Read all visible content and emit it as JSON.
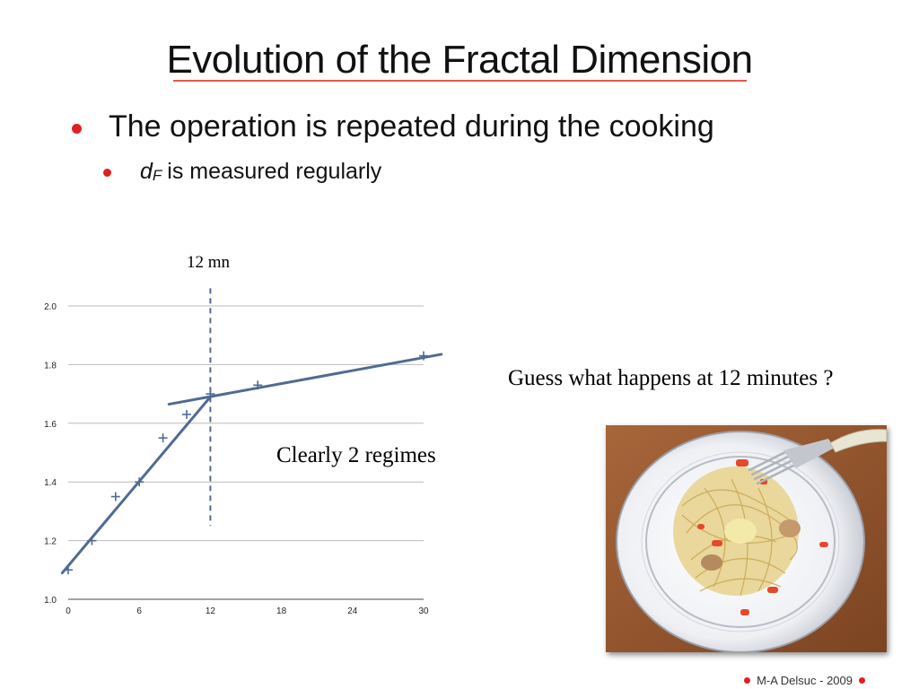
{
  "slide": {
    "title": "Evolution of the Fractal Dimension",
    "bullet_main": "The operation is repeated during the cooking",
    "bullet_sub_var": "d",
    "bullet_sub_subscript": "F",
    "bullet_sub_text": "is measured regularly",
    "annotation_12mn": "12 mn",
    "annotation_regimes": "Clearly 2 regimes",
    "question": "Guess what happens at 12 minutes ?",
    "footer": "M-A Delsuc - 2009"
  },
  "colors": {
    "accent": "#e02020",
    "title_underline": "#e05a4e",
    "series": "#4f6b94",
    "grid": "#bbbbbb"
  },
  "photo": {
    "subject": "plate of spaghetti with a fork"
  },
  "chart_data": {
    "type": "scatter",
    "x_ticks": [
      0,
      6,
      12,
      18,
      24,
      30
    ],
    "y_ticks": [
      1.0,
      1.2,
      1.4,
      1.6,
      1.8,
      2.0
    ],
    "x_tick_labels": [
      "0",
      "6",
      "12",
      "18",
      "24",
      "30"
    ],
    "y_tick_labels": [
      "1.0",
      "1.2",
      "1.4",
      "1.6",
      "1.8",
      "2.0"
    ],
    "xlim": [
      0,
      30
    ],
    "ylim": [
      1.0,
      2.0
    ],
    "grid": "horizontal",
    "points": [
      {
        "x": 0,
        "y": 1.1
      },
      {
        "x": 2,
        "y": 1.2
      },
      {
        "x": 4,
        "y": 1.35
      },
      {
        "x": 6,
        "y": 1.4
      },
      {
        "x": 8,
        "y": 1.55
      },
      {
        "x": 10,
        "y": 1.63
      },
      {
        "x": 12,
        "y": 1.7
      },
      {
        "x": 16,
        "y": 1.73
      },
      {
        "x": 30,
        "y": 1.83
      }
    ],
    "fit_lines": [
      {
        "x": [
          -0.5,
          12
        ],
        "y": [
          1.09,
          1.69
        ]
      },
      {
        "x": [
          8.5,
          31.5
        ],
        "y": [
          1.665,
          1.835
        ]
      }
    ],
    "vline": {
      "x": 12,
      "y": [
        1.25,
        2.06
      ],
      "style": "dashed"
    }
  }
}
